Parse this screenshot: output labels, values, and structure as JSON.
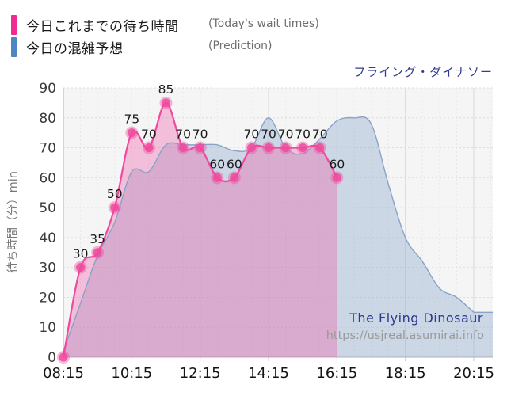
{
  "legend": {
    "today": {
      "label_jp": "今日これまでの待ち時間",
      "label_en": "(Today's wait times)",
      "color": "#ee2b92"
    },
    "prediction": {
      "label_jp": "今日の混雑予想",
      "label_en": "(Prediction)",
      "color": "#4e86c4"
    }
  },
  "title": "フライング・ダイナソー",
  "watermark": {
    "name": "The Flying Dinosaur",
    "url": "https://usjreal.asumirai.info"
  },
  "colors": {
    "title_navy": "#333c8e",
    "watermark_navy": "#2c3a8f",
    "watermark_url_gray": "#999999",
    "today_line": "#ef4a9d",
    "today_fill": "rgba(240,100,170,0.38)",
    "prediction_line": "#8aa3c6",
    "prediction_fill": "rgba(130,160,200,0.35)",
    "plot_background": "#f5f5f6"
  },
  "chart_data": {
    "type": "area",
    "title": "フライング・ダイナソー",
    "ylabel": "待ち時間（分）min",
    "ylim": [
      0,
      90
    ],
    "y_tick_step": 10,
    "x_tick_labels": [
      "08:15",
      "10:15",
      "12:15",
      "14:15",
      "16:15",
      "18:15",
      "20:15"
    ],
    "grid": true,
    "legend_position": "top-left",
    "series": [
      {
        "name": "今日これまでの待ち時間",
        "name_en": "Today's wait times",
        "style": "line+markers+area",
        "x": [
          "08:15",
          "08:45",
          "09:15",
          "09:45",
          "10:15",
          "10:45",
          "11:15",
          "11:45",
          "12:15",
          "12:45",
          "13:15",
          "13:45",
          "14:15",
          "14:45",
          "15:15",
          "15:45",
          "16:15"
        ],
        "values": [
          0,
          30,
          35,
          50,
          75,
          70,
          85,
          70,
          70,
          60,
          60,
          70,
          70,
          70,
          70,
          70,
          60
        ],
        "point_labels": [
          "",
          "30",
          "35",
          "50",
          "75",
          "70",
          "85",
          "70",
          "70",
          "60",
          "60",
          "70",
          "70",
          "70",
          "70",
          "70",
          "60"
        ]
      },
      {
        "name": "今日の混雑予想",
        "name_en": "Prediction",
        "style": "line+area",
        "x": [
          "08:15",
          "08:45",
          "09:15",
          "09:45",
          "10:15",
          "10:45",
          "11:15",
          "11:45",
          "12:15",
          "12:45",
          "13:15",
          "13:45",
          "14:15",
          "14:45",
          "15:15",
          "15:45",
          "16:15",
          "16:45",
          "17:15",
          "17:45",
          "18:15",
          "18:45",
          "19:15",
          "19:45",
          "20:15"
        ],
        "values": [
          2,
          18,
          34,
          45,
          62,
          62,
          71,
          71,
          71,
          71,
          69,
          70,
          80,
          70,
          68,
          73,
          79,
          80,
          78,
          58,
          40,
          32,
          23,
          20,
          15
        ]
      }
    ]
  }
}
